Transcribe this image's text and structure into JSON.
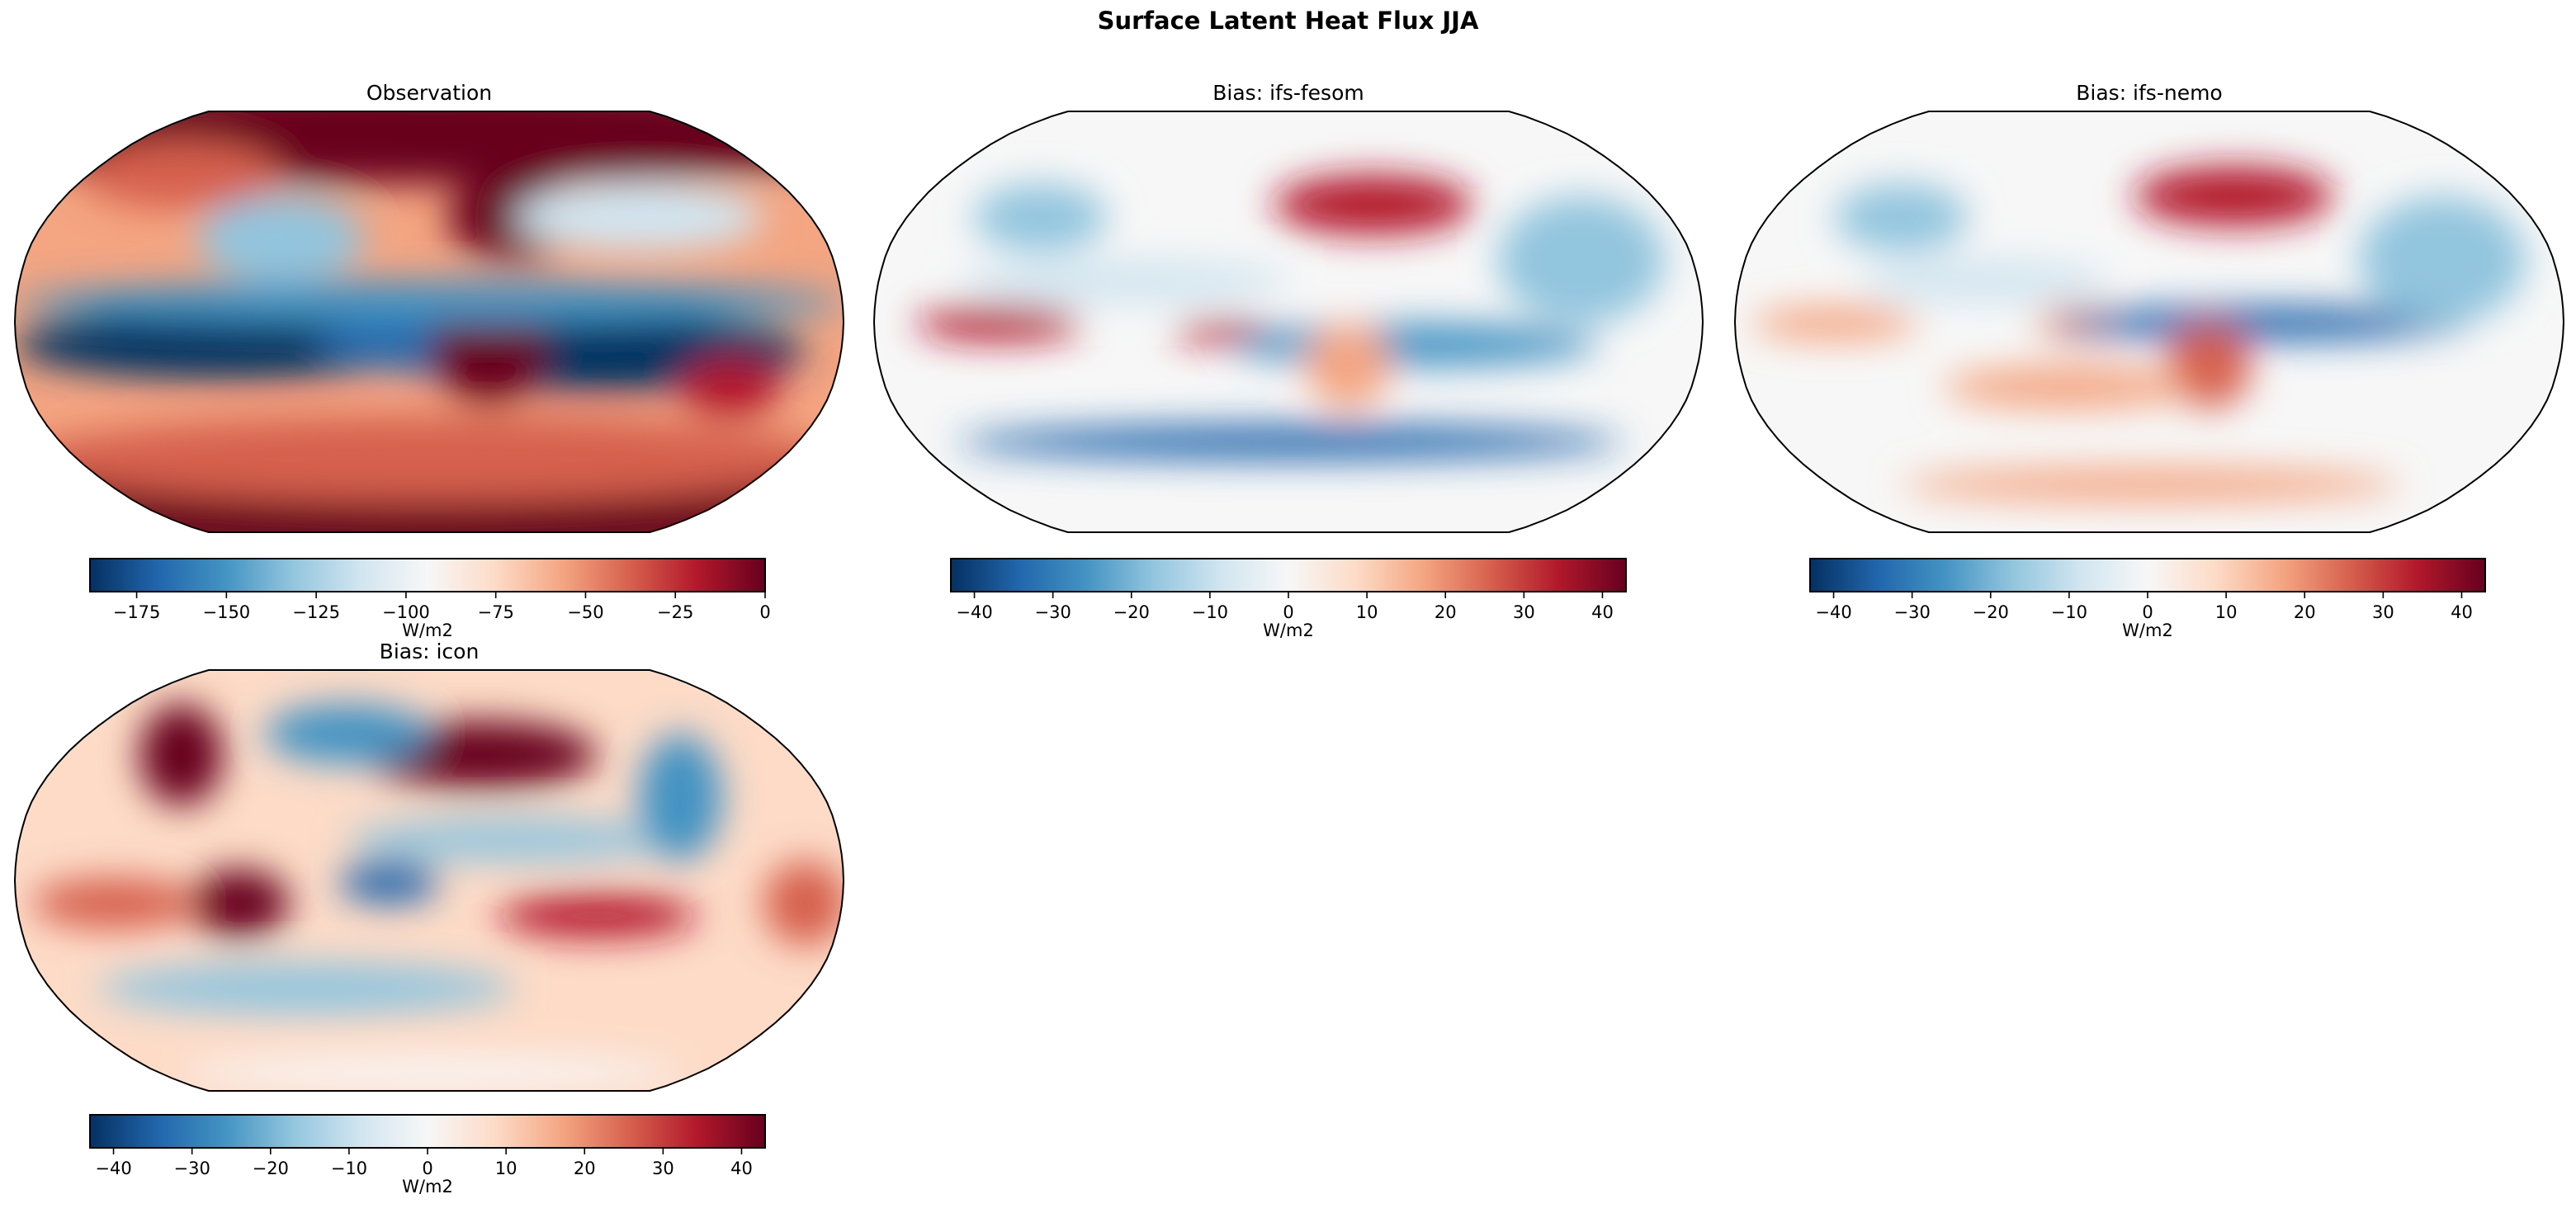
{
  "figure": {
    "title": "Surface Latent Heat Flux JJA",
    "colormap": "RdBu_r",
    "colormap_stops": [
      "#053061",
      "#2166ac",
      "#4393c3",
      "#92c5de",
      "#d1e5f0",
      "#f7f7f7",
      "#fddbc7",
      "#f4a582",
      "#d6604d",
      "#b2182b",
      "#67001f"
    ],
    "projection": "Robinson",
    "coastline_color": "#000000"
  },
  "panels": [
    {
      "title": "Observation",
      "colorbar": {
        "label": "W/m2",
        "range": [
          -188,
          0
        ],
        "ticks": [
          -175,
          -150,
          -125,
          -100,
          -75,
          -50,
          -25,
          0
        ],
        "tick_labels": [
          "−175",
          "−150",
          "−125",
          "−100",
          "−75",
          "−50",
          "−25",
          "0"
        ]
      }
    },
    {
      "title": "Bias: ifs-fesom",
      "colorbar": {
        "label": "W/m2",
        "range": [
          -43,
          43
        ],
        "ticks": [
          -40,
          -30,
          -20,
          -10,
          0,
          10,
          20,
          30,
          40
        ],
        "tick_labels": [
          "−40",
          "−30",
          "−20",
          "−10",
          "0",
          "10",
          "20",
          "30",
          "40"
        ]
      }
    },
    {
      "title": "Bias: ifs-nemo",
      "colorbar": {
        "label": "W/m2",
        "range": [
          -43,
          43
        ],
        "ticks": [
          -40,
          -30,
          -20,
          -10,
          0,
          10,
          20,
          30,
          40
        ],
        "tick_labels": [
          "−40",
          "−30",
          "−20",
          "−10",
          "0",
          "10",
          "20",
          "30",
          "40"
        ]
      }
    },
    {
      "title": "Bias: icon",
      "colorbar": {
        "label": "W/m2",
        "range": [
          -43,
          43
        ],
        "ticks": [
          -40,
          -30,
          -20,
          -10,
          0,
          10,
          20,
          30,
          40
        ],
        "tick_labels": [
          "−40",
          "−30",
          "−20",
          "−10",
          "0",
          "10",
          "20",
          "30",
          "40"
        ]
      }
    }
  ]
}
